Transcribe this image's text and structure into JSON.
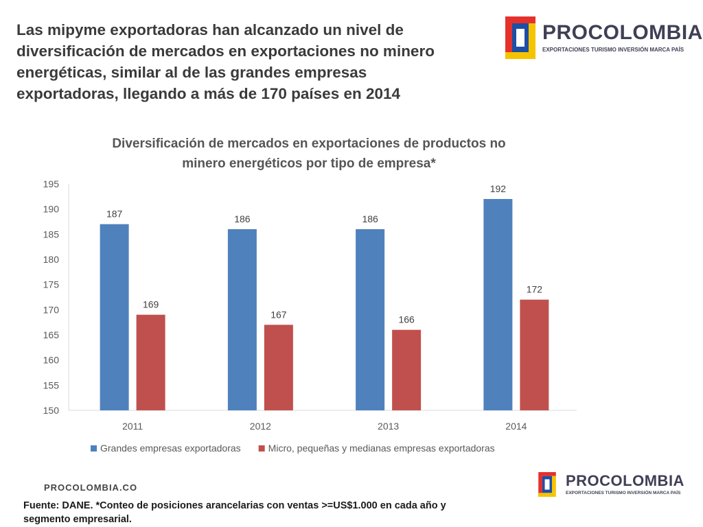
{
  "headline": "Las mipyme exportadoras han alcanzado un nivel de diversificación de mercados en exportaciones no minero energéticas, similar al de las grandes empresas exportadoras, llegando a más de 170 países en 2014",
  "logo": {
    "name": "PROCOLOMBIA",
    "tagline": "EXPORTACIONES TURISMO INVERSIÓN MARCA PAÍS"
  },
  "website": "PROCOLOMBIA.CO",
  "footnote": "Fuente: DANE. *Conteo de posiciones arancelarias con ventas >=US$1.000 en cada año y segmento empresarial.",
  "chart_data": {
    "type": "bar",
    "title": "Diversificación de mercados en exportaciones de productos no minero energéticos por tipo de empresa*",
    "categories": [
      "2011",
      "2012",
      "2013",
      "2014"
    ],
    "series": [
      {
        "name": "Grandes empresas exportadoras",
        "color": "#4f81bd",
        "values": [
          187,
          186,
          186,
          192
        ]
      },
      {
        "name": "Micro, pequeñas y medianas empresas exportadoras",
        "color": "#c0504d",
        "values": [
          169,
          167,
          166,
          172
        ]
      }
    ],
    "ylim": [
      150,
      195
    ],
    "yticks": [
      150,
      155,
      160,
      165,
      170,
      175,
      180,
      185,
      190,
      195
    ],
    "xlabel": "",
    "ylabel": "",
    "grid": false,
    "legend_position": "bottom"
  }
}
